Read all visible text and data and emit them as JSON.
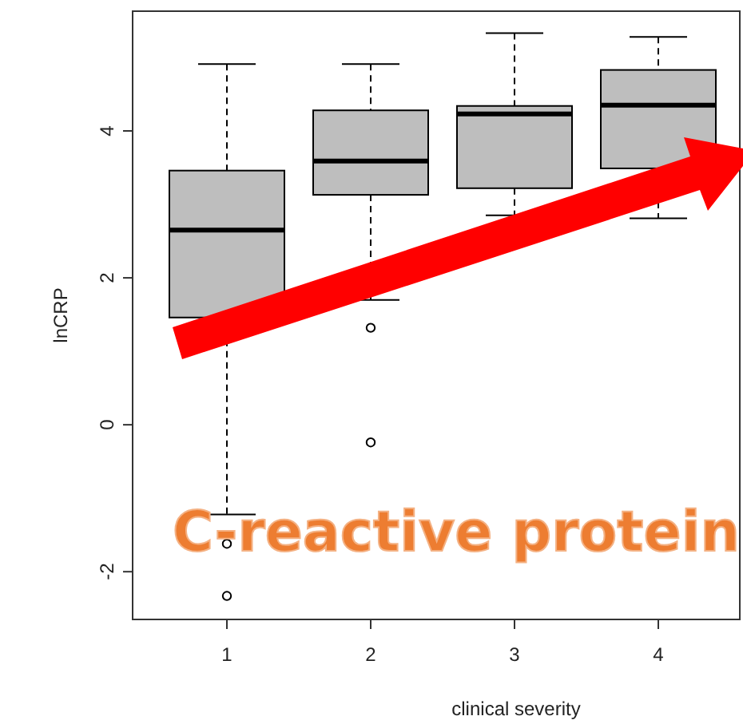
{
  "chart_data": {
    "type": "box",
    "xlabel": "clinical severity",
    "ylabel": "lnCRP",
    "categories": [
      "1",
      "2",
      "3",
      "4"
    ],
    "color": "#bebebe",
    "ylim": [
      -2.65,
      5.63
    ],
    "yticks": [
      -2,
      0,
      2,
      4
    ],
    "grid": false,
    "boxes": [
      {
        "low": -1.22,
        "q1": 1.46,
        "median": 2.65,
        "q3": 3.46,
        "high": 4.91,
        "outliers": [
          -1.62,
          -2.33
        ]
      },
      {
        "low": 1.7,
        "q1": 3.13,
        "median": 3.59,
        "q3": 4.28,
        "high": 4.91,
        "outliers": [
          1.32,
          -0.24
        ]
      },
      {
        "low": 2.85,
        "q1": 3.22,
        "median": 4.23,
        "q3": 4.34,
        "high": 5.33
      },
      {
        "low": 2.81,
        "q1": 3.49,
        "median": 4.35,
        "q3": 4.83,
        "high": 5.28
      }
    ],
    "annotations": [
      "C-reactive protein"
    ]
  }
}
